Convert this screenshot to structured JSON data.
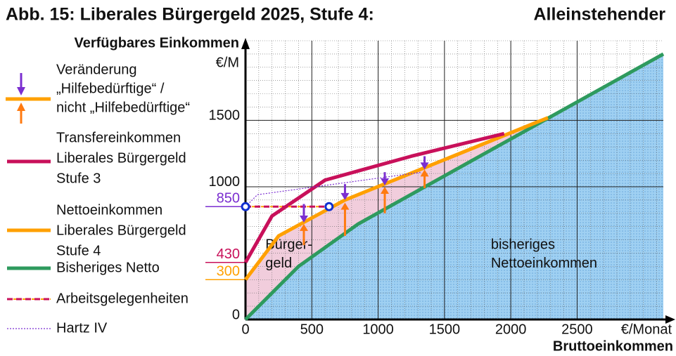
{
  "chart_data": {
    "type": "line",
    "title": "Abb. 15:   Liberales Bürgergeld 2025, Stufe 4:",
    "title_right": "Alleinstehender",
    "y_label": "Verfügbares Einkommen",
    "y_unit": "€/M",
    "x_unit": "€/Monat",
    "x_label": "Bruttoeinkommen",
    "xlim": [
      0,
      3150
    ],
    "ylim": [
      0,
      2100
    ],
    "xticks": [
      0,
      500,
      1000,
      1500,
      2000,
      2500
    ],
    "yticks": [
      0,
      1000,
      1500
    ],
    "grid": true,
    "minor_grid": 100,
    "marked_yticks": [
      {
        "value": 850,
        "color": "#7b2fd0"
      },
      {
        "value": 430,
        "color": "#c8105a"
      },
      {
        "value": 300,
        "color": "#ffa000"
      }
    ],
    "annotations": [
      {
        "text": "Bürger-",
        "x": 150,
        "y": 560
      },
      {
        "text": "geld",
        "x": 150,
        "y": 420
      },
      {
        "text": "bisheriges",
        "x": 1850,
        "y": 560
      },
      {
        "text": "Nettoeinkommen",
        "x": 1850,
        "y": 420
      }
    ],
    "series": [
      {
        "name": [
          "Transfereinkommen",
          "Liberales Bürgergeld",
          "Stufe 3"
        ],
        "color": "#c8105a",
        "style": "solid",
        "x": [
          0,
          200,
          600,
          1250,
          1950
        ],
        "values": [
          430,
          780,
          1050,
          1230,
          1400
        ]
      },
      {
        "name": [
          "Nettoeinkommen",
          "Liberales Bürgergeld",
          "Stufe 4"
        ],
        "color": "#ffa000",
        "style": "solid",
        "x": [
          0,
          250,
          750,
          2280
        ],
        "values": [
          300,
          630,
          900,
          1520
        ]
      },
      {
        "name": [
          "Bisheriges Netto"
        ],
        "color": "#2e9a5e",
        "style": "solid",
        "x": [
          0,
          400,
          850,
          3150
        ],
        "values": [
          0,
          400,
          720,
          2000
        ]
      },
      {
        "name": [
          "Arbeitsgelegenheiten"
        ],
        "color": "#c8105a",
        "style": "dashed",
        "x": [
          0,
          630
        ],
        "values": [
          850,
          850
        ]
      },
      {
        "name": [
          "Hartz IV"
        ],
        "color": "#7b2fd0",
        "style": "dotted",
        "x": [
          0,
          90,
          1330
        ],
        "values": [
          850,
          940,
          1110
        ]
      }
    ],
    "changes": {
      "name": [
        "Veränderung",
        "„Hilfebedürftige“ /",
        "nicht „Hilfebedürftige“"
      ],
      "down_color": "#7b2fd0",
      "up_color": "#ff7a10",
      "down": [
        {
          "x": 440,
          "from": 870,
          "to": 730
        },
        {
          "x": 750,
          "from": 1020,
          "to": 900
        },
        {
          "x": 1050,
          "from": 1110,
          "to": 1010
        },
        {
          "x": 1350,
          "from": 1230,
          "to": 1130
        }
      ],
      "up": [
        {
          "x": 440,
          "from": 560,
          "to": 720
        },
        {
          "x": 750,
          "from": 630,
          "to": 880
        },
        {
          "x": 1050,
          "from": 800,
          "to": 1000
        },
        {
          "x": 1350,
          "from": 990,
          "to": 1130
        }
      ]
    }
  }
}
